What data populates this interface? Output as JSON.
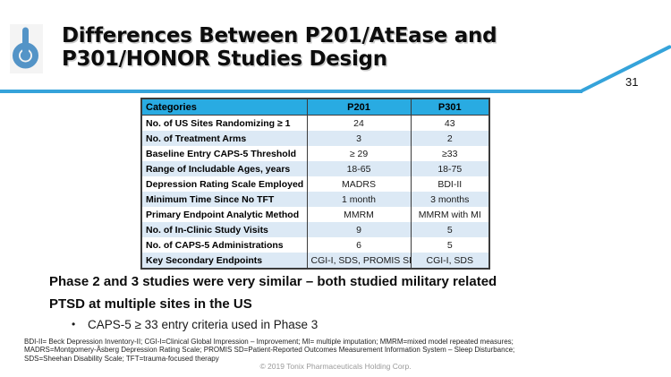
{
  "header": {
    "title_line1": "Differences Between P201/AtEase and",
    "title_line2": "P301/HONOR Studies Design",
    "page_number": "31",
    "accent_color": "#35A3DA",
    "logo_color": "#5494C7"
  },
  "table": {
    "header_bg": "#29ABE2",
    "stripe_bg": "#DCE9F5",
    "headers": [
      "Categories",
      "P201",
      "P301"
    ],
    "rows": [
      {
        "category": "No. of US Sites Randomizing ≥ 1",
        "p201": "24",
        "p301": "43"
      },
      {
        "category": "No. of Treatment Arms",
        "p201": "3",
        "p301": "2"
      },
      {
        "category": "Baseline Entry CAPS-5 Threshold",
        "p201": "≥ 29",
        "p301": "≥33"
      },
      {
        "category": "Range of Includable Ages, years",
        "p201": "18-65",
        "p301": "18-75"
      },
      {
        "category": "Depression Rating Scale Employed",
        "p201": "MADRS",
        "p301": "BDI-II"
      },
      {
        "category": "Minimum Time Since No TFT",
        "p201": "1 month",
        "p301": "3 months"
      },
      {
        "category": "Primary Endpoint Analytic Method",
        "p201": "MMRM",
        "p301": "MMRM with MI"
      },
      {
        "category": "No. of In-Clinic Study Visits",
        "p201": "9",
        "p301": "5"
      },
      {
        "category": "No. of CAPS-5 Administrations",
        "p201": "6",
        "p301": "5"
      },
      {
        "category": "Key Secondary Endpoints",
        "p201": "CGI-I, SDS, PROMIS SD",
        "p301": "CGI-I, SDS"
      }
    ]
  },
  "statement": {
    "line1": "Phase 2 and 3 studies were very similar – both studied military related",
    "line2": "PTSD at multiple sites in the US",
    "bullet_glyph": "•",
    "bullet": "CAPS-5 ≥ 33 entry criteria used in Phase 3"
  },
  "footnotes": {
    "line1": "BDI-II= Beck Depression Inventory-II; CGI-I=Clinical Global Impression – Improvement; MI= multiple imputation; MMRM=mixed model repeated measures;",
    "line2": "MADRS=Montgomery-Åsberg Depression Rating Scale; PROMIS SD=Patient-Reported Outcomes Measurement Information System – Sleep Disturbance;",
    "line3": "SDS=Sheehan Disability Scale; TFT=trauma-focused therapy"
  },
  "copyright": "© 2019 Tonix Pharmaceuticals Holding Corp."
}
